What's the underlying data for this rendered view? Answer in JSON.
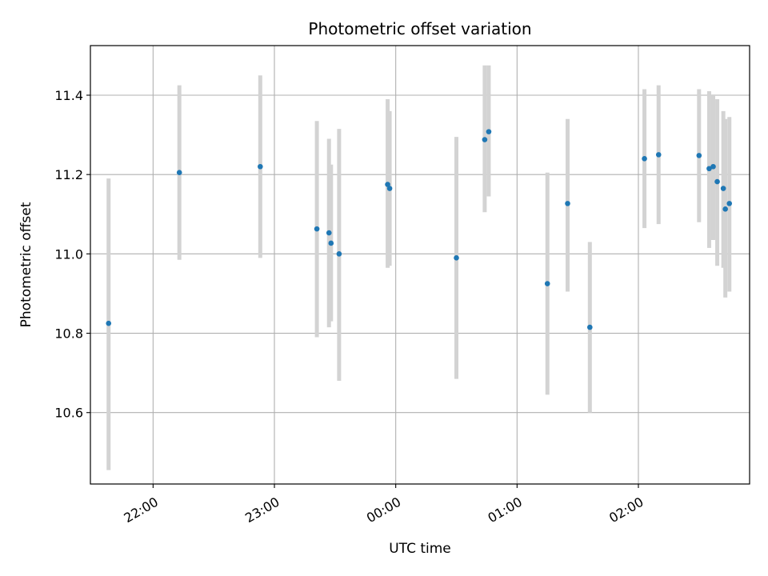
{
  "chart_data": {
    "type": "scatter",
    "title": "Photometric offset variation",
    "xlabel": "UTC time",
    "ylabel": "Photometric offset",
    "xlim": [
      "21:29",
      "02:55"
    ],
    "ylim": [
      10.42,
      11.525
    ],
    "grid": true,
    "x_ticks": [
      "22:00",
      "23:00",
      "00:00",
      "01:00",
      "02:00"
    ],
    "y_ticks": [
      10.6,
      10.8,
      11.0,
      11.2,
      11.4
    ],
    "y_tick_labels": [
      "10.6",
      "10.8",
      "11.0",
      "11.2",
      "11.4"
    ],
    "errorbar_color": "#d3d3d3",
    "point_color": "#1f77b4",
    "points": [
      {
        "x": "21:38",
        "y": 10.825,
        "low": 10.455,
        "high": 11.19
      },
      {
        "x": "22:13",
        "y": 11.205,
        "low": 10.985,
        "high": 11.425
      },
      {
        "x": "22:53",
        "y": 11.22,
        "low": 10.99,
        "high": 11.45
      },
      {
        "x": "23:21",
        "y": 11.063,
        "low": 10.79,
        "high": 11.335
      },
      {
        "x": "23:27",
        "y": 11.053,
        "low": 10.815,
        "high": 11.29
      },
      {
        "x": "23:28",
        "y": 11.027,
        "low": 10.83,
        "high": 11.225
      },
      {
        "x": "23:32",
        "y": 11.0,
        "low": 10.68,
        "high": 11.315
      },
      {
        "x": "23:56",
        "y": 11.175,
        "low": 10.965,
        "high": 11.39
      },
      {
        "x": "23:57",
        "y": 11.165,
        "low": 10.97,
        "high": 11.36
      },
      {
        "x": "00:30",
        "y": 10.99,
        "low": 10.685,
        "high": 11.295
      },
      {
        "x": "00:44",
        "y": 11.288,
        "low": 11.105,
        "high": 11.475
      },
      {
        "x": "00:46",
        "y": 11.308,
        "low": 11.145,
        "high": 11.475
      },
      {
        "x": "01:15",
        "y": 10.925,
        "low": 10.645,
        "high": 11.205
      },
      {
        "x": "01:25",
        "y": 11.127,
        "low": 10.905,
        "high": 11.34
      },
      {
        "x": "01:36",
        "y": 10.815,
        "low": 10.6,
        "high": 11.03
      },
      {
        "x": "02:03",
        "y": 11.24,
        "low": 11.065,
        "high": 11.415
      },
      {
        "x": "02:10",
        "y": 11.25,
        "low": 11.075,
        "high": 11.425
      },
      {
        "x": "02:30",
        "y": 11.248,
        "low": 11.08,
        "high": 11.415
      },
      {
        "x": "02:35",
        "y": 11.215,
        "low": 11.015,
        "high": 11.41
      },
      {
        "x": "02:37",
        "y": 11.22,
        "low": 11.035,
        "high": 11.4
      },
      {
        "x": "02:39",
        "y": 11.182,
        "low": 10.97,
        "high": 11.39
      },
      {
        "x": "02:42",
        "y": 11.165,
        "low": 10.965,
        "high": 11.36
      },
      {
        "x": "02:43",
        "y": 11.113,
        "low": 10.89,
        "high": 11.34
      },
      {
        "x": "02:45",
        "y": 11.127,
        "low": 10.905,
        "high": 11.345
      }
    ]
  }
}
